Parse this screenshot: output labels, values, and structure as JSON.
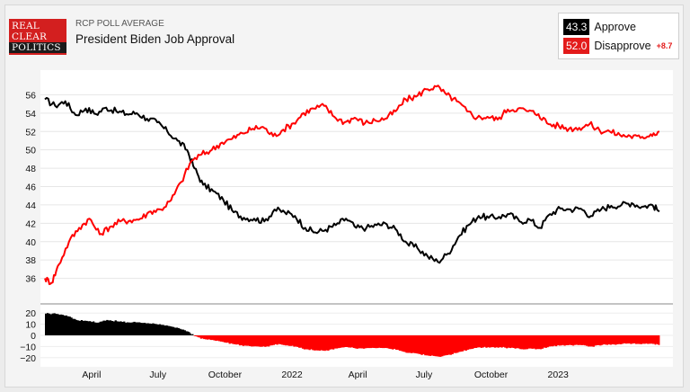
{
  "header": {
    "logo_lines": [
      "REAL",
      "CLEAR",
      "POLITICS"
    ],
    "kicker": "RCP POLL AVERAGE",
    "title": "President Biden Job Approval"
  },
  "legend": {
    "approve": {
      "value": "43.3",
      "label": "Approve",
      "color": "#000000"
    },
    "disapprove": {
      "value": "52.0",
      "label": "Disapprove",
      "color": "#e31b1b",
      "spread": "+8.7"
    }
  },
  "colors": {
    "approve": "#000000",
    "disapprove": "#ff0000",
    "background": "#f4f4f4"
  },
  "chart_data": {
    "type": "line",
    "title": "President Biden Job Approval",
    "x_labels": [
      "April",
      "July",
      "October",
      "2022",
      "April",
      "July",
      "October",
      "2023"
    ],
    "x_label_dates": [
      "2021-04-01",
      "2021-07-01",
      "2021-10-01",
      "2022-01-01",
      "2022-04-01",
      "2022-07-01",
      "2022-10-01",
      "2023-01-01"
    ],
    "x_range": [
      "2021-01-27",
      "2023-05-20"
    ],
    "ylim": [
      34,
      58
    ],
    "y_ticks": [
      36,
      38,
      40,
      42,
      44,
      46,
      48,
      50,
      52,
      54,
      56
    ],
    "spread_ylim": [
      -25,
      25
    ],
    "spread_ticks": [
      20,
      10,
      0,
      -10,
      -20
    ],
    "grid": "horizontal",
    "series": [
      {
        "name": "Approve",
        "color": "#000000",
        "points": [
          [
            "2021-01-27",
            55.5
          ],
          [
            "2021-02-10",
            54.8
          ],
          [
            "2021-02-24",
            55.3
          ],
          [
            "2021-03-10",
            53.8
          ],
          [
            "2021-03-24",
            54.5
          ],
          [
            "2021-04-07",
            53.9
          ],
          [
            "2021-04-21",
            54.6
          ],
          [
            "2021-05-05",
            54.2
          ],
          [
            "2021-05-19",
            53.9
          ],
          [
            "2021-06-02",
            54.0
          ],
          [
            "2021-06-16",
            53.4
          ],
          [
            "2021-06-30",
            53.0
          ],
          [
            "2021-07-14",
            52.0
          ],
          [
            "2021-07-28",
            51.0
          ],
          [
            "2021-08-10",
            50.0
          ],
          [
            "2021-08-20",
            48.0
          ],
          [
            "2021-09-01",
            46.2
          ],
          [
            "2021-09-15",
            45.5
          ],
          [
            "2021-09-29",
            44.5
          ],
          [
            "2021-10-13",
            43.2
          ],
          [
            "2021-10-27",
            42.6
          ],
          [
            "2021-11-10",
            42.5
          ],
          [
            "2021-11-24",
            42.2
          ],
          [
            "2021-12-08",
            43.5
          ],
          [
            "2021-12-22",
            43.2
          ],
          [
            "2022-01-05",
            42.8
          ],
          [
            "2022-01-19",
            41.5
          ],
          [
            "2022-02-02",
            41.0
          ],
          [
            "2022-02-16",
            41.3
          ],
          [
            "2022-03-02",
            41.8
          ],
          [
            "2022-03-16",
            42.5
          ],
          [
            "2022-03-30",
            41.5
          ],
          [
            "2022-04-13",
            41.5
          ],
          [
            "2022-04-27",
            41.8
          ],
          [
            "2022-05-11",
            41.9
          ],
          [
            "2022-05-25",
            41.2
          ],
          [
            "2022-06-08",
            39.8
          ],
          [
            "2022-06-22",
            39.3
          ],
          [
            "2022-07-06",
            38.4
          ],
          [
            "2022-07-20",
            37.8
          ],
          [
            "2022-08-03",
            38.7
          ],
          [
            "2022-08-17",
            40.5
          ],
          [
            "2022-08-31",
            41.8
          ],
          [
            "2022-09-14",
            42.8
          ],
          [
            "2022-09-28",
            42.6
          ],
          [
            "2022-10-12",
            42.7
          ],
          [
            "2022-10-26",
            43.0
          ],
          [
            "2022-11-09",
            42.2
          ],
          [
            "2022-11-23",
            42.4
          ],
          [
            "2022-12-07",
            41.5
          ],
          [
            "2022-12-21",
            43.0
          ],
          [
            "2023-01-04",
            43.6
          ],
          [
            "2023-01-18",
            43.5
          ],
          [
            "2023-02-01",
            43.6
          ],
          [
            "2023-02-15",
            42.8
          ],
          [
            "2023-03-01",
            43.5
          ],
          [
            "2023-03-15",
            43.9
          ],
          [
            "2023-03-29",
            44.0
          ],
          [
            "2023-04-12",
            44.2
          ],
          [
            "2023-04-26",
            43.8
          ],
          [
            "2023-05-10",
            44.0
          ],
          [
            "2023-05-20",
            43.3
          ]
        ]
      },
      {
        "name": "Disapprove",
        "color": "#ff0000",
        "points": [
          [
            "2021-01-27",
            36.0
          ],
          [
            "2021-02-05",
            35.5
          ],
          [
            "2021-02-15",
            37.5
          ],
          [
            "2021-03-01",
            40.0
          ],
          [
            "2021-03-15",
            41.5
          ],
          [
            "2021-03-29",
            42.5
          ],
          [
            "2021-04-12",
            40.8
          ],
          [
            "2021-04-26",
            41.6
          ],
          [
            "2021-05-10",
            42.2
          ],
          [
            "2021-05-24",
            42.3
          ],
          [
            "2021-06-07",
            42.5
          ],
          [
            "2021-06-21",
            43.3
          ],
          [
            "2021-07-05",
            43.5
          ],
          [
            "2021-07-19",
            44.5
          ],
          [
            "2021-08-02",
            46.5
          ],
          [
            "2021-08-16",
            48.8
          ],
          [
            "2021-08-30",
            49.5
          ],
          [
            "2021-09-13",
            50.0
          ],
          [
            "2021-09-27",
            50.8
          ],
          [
            "2021-10-11",
            51.2
          ],
          [
            "2021-10-25",
            51.8
          ],
          [
            "2021-11-08",
            52.3
          ],
          [
            "2021-11-22",
            52.5
          ],
          [
            "2021-12-06",
            51.5
          ],
          [
            "2021-12-20",
            52.2
          ],
          [
            "2022-01-03",
            52.9
          ],
          [
            "2022-01-17",
            54.0
          ],
          [
            "2022-01-31",
            54.5
          ],
          [
            "2022-02-14",
            54.8
          ],
          [
            "2022-02-28",
            53.6
          ],
          [
            "2022-03-14",
            53.0
          ],
          [
            "2022-03-28",
            53.5
          ],
          [
            "2022-04-11",
            52.9
          ],
          [
            "2022-04-25",
            53.2
          ],
          [
            "2022-05-09",
            53.4
          ],
          [
            "2022-05-23",
            54.2
          ],
          [
            "2022-06-06",
            55.5
          ],
          [
            "2022-06-20",
            55.8
          ],
          [
            "2022-07-04",
            56.6
          ],
          [
            "2022-07-18",
            56.9
          ],
          [
            "2022-08-01",
            56.0
          ],
          [
            "2022-08-15",
            55.3
          ],
          [
            "2022-08-29",
            54.2
          ],
          [
            "2022-09-12",
            53.5
          ],
          [
            "2022-09-26",
            53.6
          ],
          [
            "2022-10-10",
            53.3
          ],
          [
            "2022-10-24",
            54.4
          ],
          [
            "2022-11-07",
            54.5
          ],
          [
            "2022-11-21",
            54.2
          ],
          [
            "2022-12-05",
            53.9
          ],
          [
            "2022-12-19",
            52.8
          ],
          [
            "2023-01-02",
            52.6
          ],
          [
            "2023-01-16",
            52.3
          ],
          [
            "2023-01-30",
            52.4
          ],
          [
            "2023-02-13",
            52.8
          ],
          [
            "2023-02-27",
            52.1
          ],
          [
            "2023-03-13",
            52.0
          ],
          [
            "2023-03-27",
            51.6
          ],
          [
            "2023-04-10",
            51.5
          ],
          [
            "2023-04-24",
            51.3
          ],
          [
            "2023-05-08",
            51.7
          ],
          [
            "2023-05-20",
            52.0
          ]
        ]
      }
    ]
  }
}
